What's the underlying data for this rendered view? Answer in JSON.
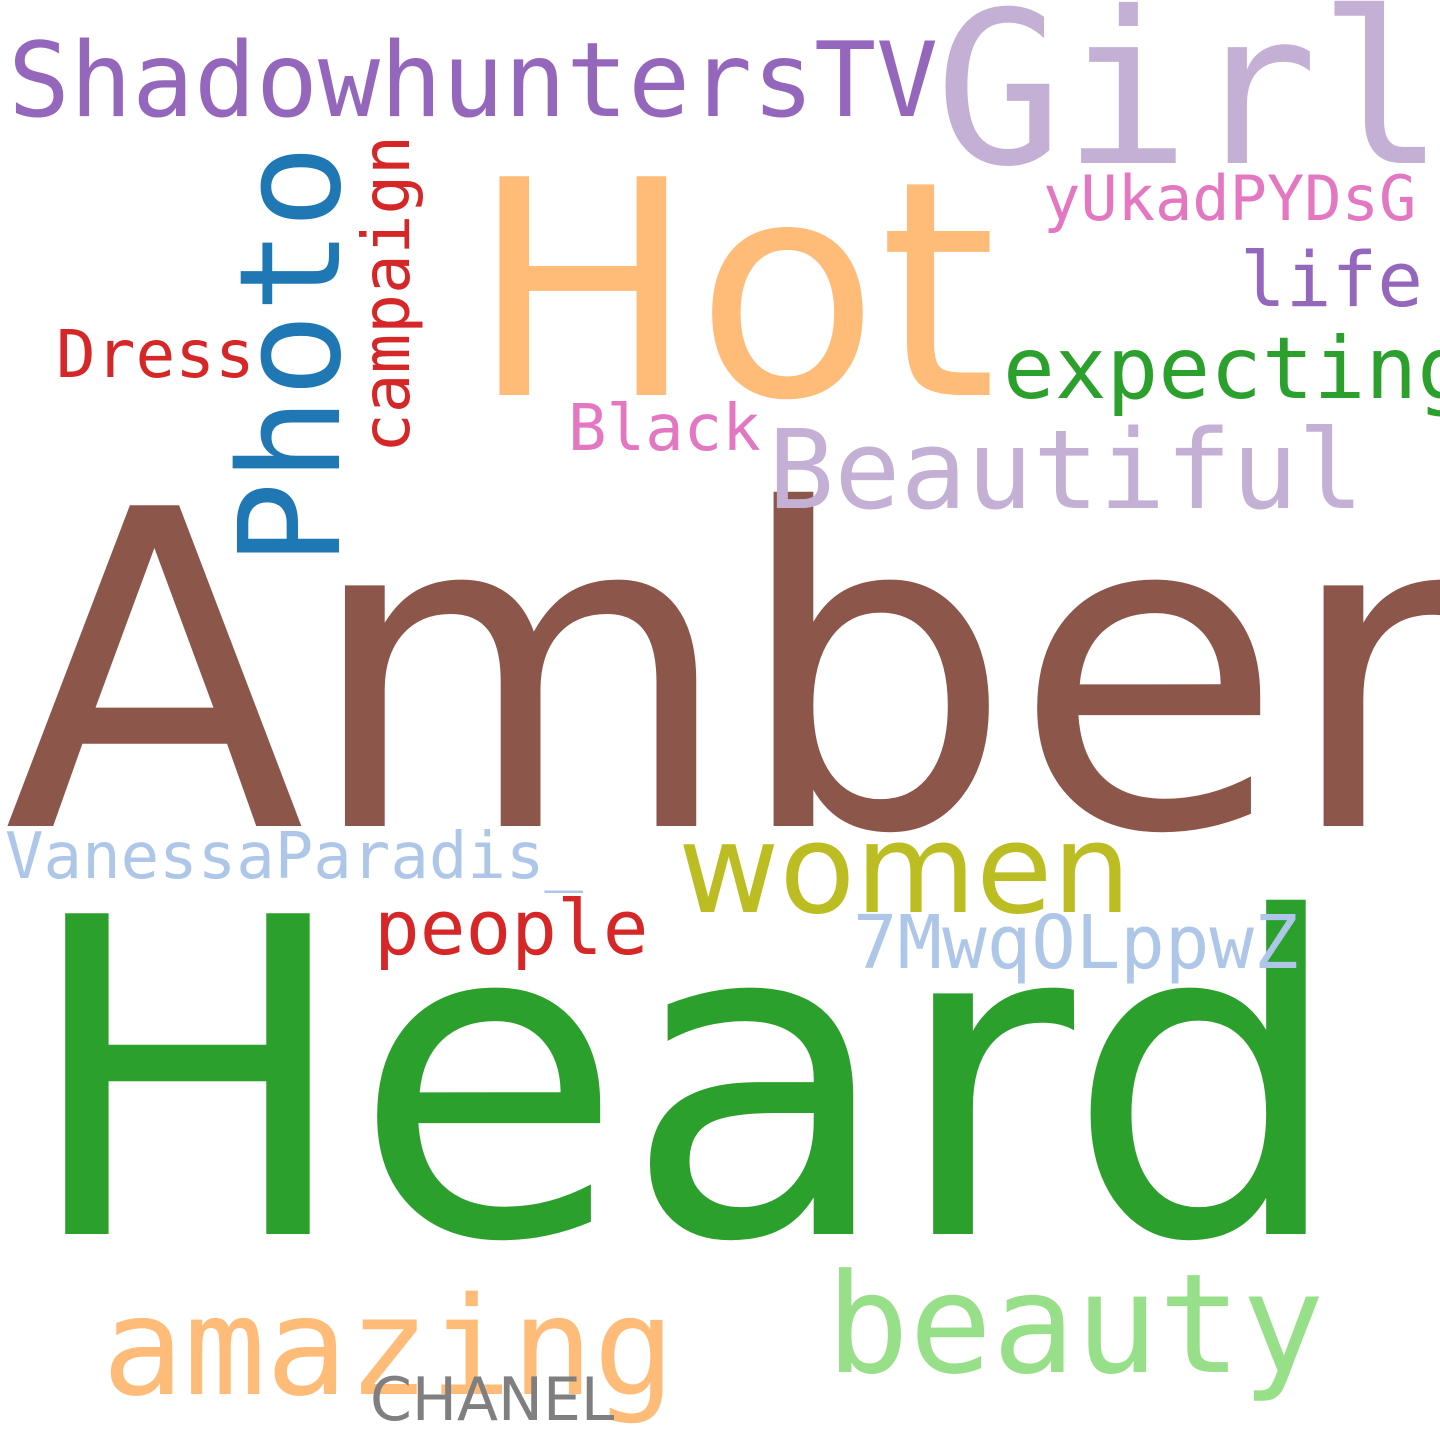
{
  "words": {
    "amber": {
      "text": "Amber",
      "color": "#8c564b"
    },
    "heard": {
      "text": "Heard",
      "color": "#2ca02c"
    },
    "hot": {
      "text": "Hot",
      "color": "#ffbb78"
    },
    "girl": {
      "text": "Girl",
      "color": "#c5b0d5"
    },
    "shadow": {
      "text": "ShadowhuntersTV",
      "color": "#9467bd"
    },
    "photo": {
      "text": "Photo",
      "color": "#1f77b4"
    },
    "campaign": {
      "text": "campaign",
      "color": "#d62728"
    },
    "yukad": {
      "text": "yUkadPYDsG",
      "color": "#e377c2"
    },
    "life": {
      "text": "life",
      "color": "#9467bd"
    },
    "expecting": {
      "text": "expecting",
      "color": "#2ca02c"
    },
    "dress": {
      "text": "Dress",
      "color": "#d62728"
    },
    "black": {
      "text": "Black",
      "color": "#e377c2"
    },
    "beautiful": {
      "text": "Beautiful",
      "color": "#c5b0d5"
    },
    "women": {
      "text": "women",
      "color": "#bcbd22"
    },
    "vanessa": {
      "text": "VanessaParadis_",
      "color": "#aec7e8"
    },
    "people": {
      "text": "people",
      "color": "#d62728"
    },
    "sevenmwq": {
      "text": "7MwqOLppwZ",
      "color": "#aec7e8"
    },
    "amazing": {
      "text": "amazing",
      "color": "#ffbb78"
    },
    "beauty": {
      "text": "beauty",
      "color": "#98df8a"
    },
    "chanel": {
      "text": "CHANEL",
      "color": "#7f7f7f"
    }
  }
}
